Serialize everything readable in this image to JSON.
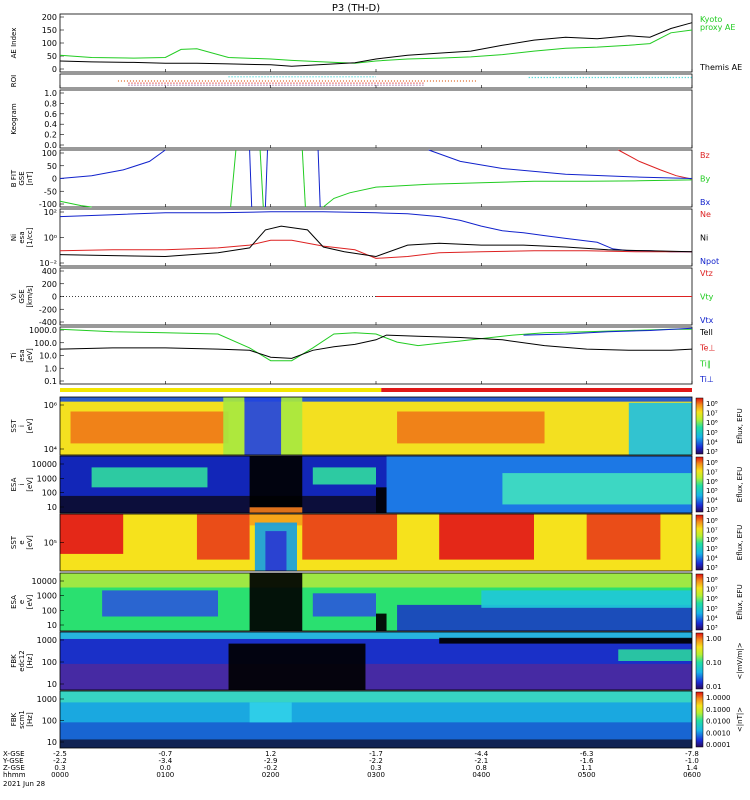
{
  "title": "P3 (TH-D)",
  "colors": {
    "black": "#000000",
    "green": "#22cc22",
    "red": "#dd2222",
    "blue": "#1122cc",
    "bar_yellow": "#f4e600",
    "bar_red": "#e01818"
  },
  "chart_data": [
    {
      "type": "line",
      "id": "ae",
      "ylabel": "AE Index",
      "yticks": [
        "200",
        "150",
        "100",
        "50",
        "0"
      ],
      "ylim": [
        0,
        200
      ],
      "legend": [
        {
          "label": "Kyoto\nproxy AE",
          "color": "#22cc22"
        },
        {
          "label": "Themis AE",
          "color": "#000000"
        }
      ],
      "series": [
        {
          "name": "Kyoto proxy AE",
          "color": "#22cc22",
          "x": [
            0,
            0.3,
            0.7,
            1.0,
            1.15,
            1.3,
            1.6,
            2.0,
            2.2,
            2.5,
            2.8,
            3.0,
            3.3,
            3.6,
            3.9,
            4.2,
            4.5,
            4.8,
            5.1,
            5.4,
            5.6,
            5.8,
            6.0
          ],
          "y": [
            58,
            50,
            48,
            50,
            78,
            80,
            50,
            45,
            40,
            35,
            30,
            38,
            45,
            48,
            52,
            60,
            72,
            82,
            86,
            92,
            98,
            135,
            145
          ]
        },
        {
          "name": "Themis AE",
          "color": "#000000",
          "x": [
            0,
            0.3,
            0.7,
            1.0,
            1.3,
            1.6,
            2.0,
            2.2,
            2.5,
            2.8,
            3.0,
            3.3,
            3.6,
            3.9,
            4.2,
            4.5,
            4.8,
            5.1,
            5.4,
            5.6,
            5.8,
            6.0
          ],
          "y": [
            38,
            35,
            33,
            30,
            30,
            28,
            25,
            20,
            26,
            32,
            45,
            58,
            65,
            72,
            92,
            110,
            120,
            115,
            125,
            120,
            150,
            170
          ]
        }
      ]
    },
    {
      "type": "scatter",
      "id": "roi",
      "ylabel": "ROI",
      "yticks": [],
      "ylim": [
        0,
        10
      ],
      "series": [
        {
          "name": "",
          "color": "#22cccc",
          "x": [
            1.6,
            3.0
          ],
          "y": [
            8,
            8
          ]
        },
        {
          "name": "",
          "color": "#22cccc",
          "x": [
            4.45,
            6.0
          ],
          "y": [
            7.5,
            7.5
          ]
        },
        {
          "name": "",
          "color": "#dd6622",
          "x": [
            0.55,
            3.95
          ],
          "y": [
            5,
            5
          ]
        },
        {
          "name": "",
          "color": "#dd2222",
          "x": [
            0.65,
            3.45
          ],
          "y": [
            3.5,
            3.5
          ]
        },
        {
          "name": "",
          "color": "#884488",
          "x": [
            0.65,
            3.45
          ],
          "y": [
            2,
            2
          ]
        }
      ]
    },
    {
      "type": "line",
      "id": "keogram",
      "ylabel": "Keogram",
      "yticks": [
        "1.0",
        "0.8",
        "0.6",
        "0.4",
        "0.2",
        "0.0"
      ],
      "ylim": [
        0,
        1
      ],
      "series": []
    },
    {
      "type": "line",
      "id": "bfield",
      "ylabel": "B FIT\nGSE\n[nT]",
      "yticks": [
        "100",
        "50",
        "0",
        "-50",
        "-100"
      ],
      "ylim": [
        -100,
        100
      ],
      "legend": [
        {
          "label": "Bz",
          "color": "#dd2222"
        },
        {
          "label": "By",
          "color": "#22cc22"
        },
        {
          "label": "Bx",
          "color": "#1122cc"
        }
      ],
      "series": [
        {
          "name": "Bz",
          "color": "#dd2222",
          "x": [
            5.3,
            5.5,
            5.7,
            5.85,
            6.0
          ],
          "y": [
            100,
            60,
            30,
            10,
            -2
          ]
        },
        {
          "name": "By",
          "color": "#22cc22",
          "x": [
            0,
            0.2,
            0.3
          ],
          "y": [
            -80,
            -95,
            -100
          ]
        },
        {
          "name": "By",
          "color": "#22cc22",
          "x": [
            1.62,
            1.67
          ],
          "y": [
            -100,
            100
          ]
        },
        {
          "name": "By",
          "color": "#22cc22",
          "x": [
            1.9,
            1.93
          ],
          "y": [
            100,
            -100
          ]
        },
        {
          "name": "By",
          "color": "#22cc22",
          "x": [
            2.3,
            2.33
          ],
          "y": [
            100,
            -100
          ]
        },
        {
          "name": "By",
          "color": "#22cc22",
          "x": [
            2.5,
            2.6,
            2.75,
            3.0,
            3.5,
            4.0,
            4.5,
            5.0,
            5.5,
            6.0
          ],
          "y": [
            -100,
            -70,
            -50,
            -30,
            -20,
            -15,
            -10,
            -10,
            -8,
            -5
          ]
        },
        {
          "name": "Bx",
          "color": "#1122cc",
          "x": [
            0,
            0.3,
            0.6,
            0.85,
            1.0
          ],
          "y": [
            0,
            10,
            30,
            60,
            100
          ]
        },
        {
          "name": "Bx",
          "color": "#1122cc",
          "x": [
            1.8,
            1.82
          ],
          "y": [
            100,
            -100
          ]
        },
        {
          "name": "Bx",
          "color": "#1122cc",
          "x": [
            1.95,
            1.97
          ],
          "y": [
            -100,
            100
          ]
        },
        {
          "name": "Bx",
          "color": "#1122cc",
          "x": [
            2.45,
            2.47
          ],
          "y": [
            100,
            -100
          ]
        },
        {
          "name": "Bx",
          "color": "#1122cc",
          "x": [
            3.5,
            3.8,
            4.2,
            4.8,
            5.5,
            6.0
          ],
          "y": [
            100,
            60,
            35,
            15,
            5,
            0
          ]
        }
      ]
    },
    {
      "type": "line",
      "id": "density",
      "ylabel": "Ni\nesa\n[1/cc]",
      "yticks": [
        "10²",
        "10⁰",
        "10⁻²"
      ],
      "ylim": [
        -3,
        3
      ],
      "legend": [
        {
          "label": "Ne",
          "color": "#dd2222"
        },
        {
          "label": "Ni",
          "color": "#000000"
        },
        {
          "label": "Npot",
          "color": "#1122cc"
        }
      ],
      "series": [
        {
          "name": "Npot",
          "color": "#1122cc",
          "x": [
            0,
            0.5,
            1.0,
            1.5,
            2.0,
            2.5,
            3.0,
            3.3,
            3.6,
            3.8,
            4.0,
            4.2,
            4.4,
            4.6,
            4.8,
            5.1,
            5.25,
            5.4,
            5.6,
            5.8,
            6.0
          ],
          "y": [
            2.2,
            2.4,
            2.6,
            2.6,
            2.7,
            2.7,
            2.6,
            2.5,
            2.2,
            1.8,
            1.2,
            0.7,
            0.5,
            0.2,
            -0.1,
            -0.5,
            -1.2,
            -1.4,
            -1.4,
            -1.5,
            -1.5
          ]
        },
        {
          "name": "Ne",
          "color": "#dd2222",
          "x": [
            0,
            0.5,
            1.0,
            1.5,
            1.8,
            2.0,
            2.2,
            2.5,
            2.8,
            3.0,
            3.3,
            3.6,
            4.0,
            4.5,
            5.0,
            5.5,
            6.0
          ],
          "y": [
            -1.4,
            -1.3,
            -1.3,
            -1.1,
            -0.8,
            -0.3,
            -0.3,
            -0.9,
            -1.3,
            -2.2,
            -2.0,
            -1.6,
            -1.5,
            -1.4,
            -1.4,
            -1.5,
            -1.5
          ]
        },
        {
          "name": "Ni",
          "color": "#000000",
          "x": [
            0,
            0.5,
            1.0,
            1.5,
            1.8,
            1.95,
            2.1,
            2.35,
            2.5,
            2.7,
            3.0,
            3.3,
            3.6,
            4.0,
            4.4,
            4.8,
            5.2,
            5.6,
            6.0
          ],
          "y": [
            -1.8,
            -1.9,
            -2.0,
            -1.6,
            -1.1,
            0.8,
            1.2,
            0.8,
            -1.0,
            -1.5,
            -2.0,
            -0.8,
            -0.6,
            -0.8,
            -0.8,
            -1.0,
            -1.3,
            -1.4,
            -1.5
          ]
        }
      ]
    },
    {
      "type": "line",
      "id": "velocity",
      "ylabel": "Vi\nGSE\n[km/s]",
      "yticks": [
        "400",
        "200",
        "0",
        "-200",
        "-400"
      ],
      "ylim": [
        -500,
        500
      ],
      "legend": [
        {
          "label": "Vtz",
          "color": "#dd2222"
        },
        {
          "label": "Vty",
          "color": "#22cc22"
        },
        {
          "label": "Vtx",
          "color": "#1122cc"
        }
      ],
      "series": [
        {
          "name": "Vtz",
          "color": "#dd2222",
          "x": [
            3.0,
            6.0
          ],
          "y": [
            0,
            0
          ]
        }
      ]
    },
    {
      "type": "line",
      "id": "temperature",
      "ylabel": "Ti\nesa\n[eV]",
      "yticks": [
        "1000.0",
        "100.0",
        "10.0",
        "1.0",
        "0.1"
      ],
      "ylim": [
        -1.3,
        3.6
      ],
      "legend": [
        {
          "label": "Tell",
          "color": "#000000"
        },
        {
          "label": "Te⊥",
          "color": "#dd2222"
        },
        {
          "label": "Ti∥",
          "color": "#22cc22"
        },
        {
          "label": "Ti⊥",
          "color": "#1122cc"
        }
      ],
      "series": [
        {
          "name": "Ti∥",
          "color": "#22cc22",
          "x": [
            0,
            0.5,
            1.0,
            1.5,
            1.8,
            2.0,
            2.2,
            2.4,
            2.6,
            2.8,
            3.0,
            3.2,
            3.4,
            3.6,
            3.8,
            4.0,
            4.3,
            4.6,
            5.0,
            5.4,
            5.8,
            6.0
          ],
          "y": [
            3.4,
            3.2,
            3.1,
            3.0,
            1.8,
            0.7,
            0.7,
            1.8,
            3.0,
            3.1,
            3.0,
            2.3,
            2.0,
            2.2,
            2.4,
            2.6,
            2.9,
            3.1,
            3.2,
            3.3,
            3.4,
            3.4
          ]
        },
        {
          "name": "Tell",
          "color": "#000000",
          "x": [
            0,
            0.5,
            1.0,
            1.5,
            1.8,
            2.0,
            2.2,
            2.4,
            2.6,
            2.8,
            3.0,
            3.1,
            3.4,
            3.8,
            4.2,
            4.6,
            5.0,
            5.4,
            5.8,
            6.0
          ],
          "y": [
            1.7,
            1.8,
            1.8,
            1.7,
            1.6,
            1.0,
            0.9,
            1.6,
            1.9,
            2.1,
            2.5,
            2.9,
            2.8,
            2.7,
            2.5,
            2.0,
            1.7,
            1.6,
            1.6,
            1.7
          ]
        },
        {
          "name": "Ti⊥",
          "color": "#1122cc",
          "x": [
            4.4,
            4.8,
            5.2,
            5.6,
            6.0
          ],
          "y": [
            2.9,
            3.0,
            3.2,
            3.3,
            3.5
          ]
        }
      ]
    },
    {
      "type": "heatmap",
      "id": "sst_ion",
      "ylabel": "SST\ni\n[eV]",
      "yticks": [
        "10⁶",
        "10⁴"
      ],
      "colorbar_ticks": [
        "10⁸",
        "10⁷",
        "10⁶",
        "10⁵",
        "10⁴",
        "10³"
      ],
      "colorbar_label": "Eflux, EFU"
    },
    {
      "type": "heatmap",
      "id": "esa_ion",
      "ylabel": "ESA\ni\n[eV]",
      "yticks": [
        "10000",
        "1000",
        "100",
        "10"
      ],
      "colorbar_ticks": [
        "10⁸",
        "10⁷",
        "10⁶",
        "10⁵",
        "10⁴",
        "10³"
      ],
      "colorbar_label": "Eflux, EFU"
    },
    {
      "type": "heatmap",
      "id": "sst_elec",
      "ylabel": "SST\ne\n[eV]",
      "yticks": [
        "10⁵"
      ],
      "colorbar_ticks": [
        "10⁸",
        "10⁷",
        "10⁶",
        "10⁵",
        "10⁴",
        "10³"
      ],
      "colorbar_label": "Eflux, EFU"
    },
    {
      "type": "heatmap",
      "id": "esa_elec",
      "ylabel": "ESA\ne\n[eV]",
      "yticks": [
        "10000",
        "1000",
        "100",
        "10"
      ],
      "colorbar_ticks": [
        "10⁸",
        "10⁷",
        "10⁶",
        "10⁵",
        "10⁴",
        "10³"
      ],
      "colorbar_label": "Eflux, EFU"
    },
    {
      "type": "heatmap",
      "id": "fbk_e",
      "ylabel": "FBK\nedc12\n[Hz]",
      "yticks": [
        "1000",
        "100",
        "10"
      ],
      "colorbar_ticks": [
        "1.00",
        "0.10",
        "0.01"
      ],
      "colorbar_label": "<|mV/m|>"
    },
    {
      "type": "heatmap",
      "id": "fbk_b",
      "ylabel": "FBK\nscm1\n[Hz]",
      "yticks": [
        "1000",
        "100",
        "10"
      ],
      "colorbar_ticks": [
        "1.0000",
        "0.1000",
        "0.0100",
        "0.0010",
        "0.0001"
      ],
      "colorbar_label": "<|nT|>"
    }
  ],
  "xaxis": {
    "row_labels": [
      "X-GSE",
      "Y-GSE",
      "Z-GSE",
      "hhmm",
      "2021 Jun 28"
    ],
    "columns": [
      [
        "-2.5",
        "-2.2",
        "0.3",
        "0000"
      ],
      [
        "-0.7",
        "-3.4",
        "0.0",
        "0100"
      ],
      [
        "1.2",
        "-2.9",
        "-0.2",
        "0200"
      ],
      [
        "-1.7",
        "-2.2",
        "0.3",
        "0300"
      ],
      [
        "-4.4",
        "-2.1",
        "0.8",
        "0400"
      ],
      [
        "-6.3",
        "-1.6",
        "1.1",
        "0500"
      ],
      [
        "-7.8",
        "-1.0",
        "1.4",
        "0600"
      ]
    ]
  }
}
